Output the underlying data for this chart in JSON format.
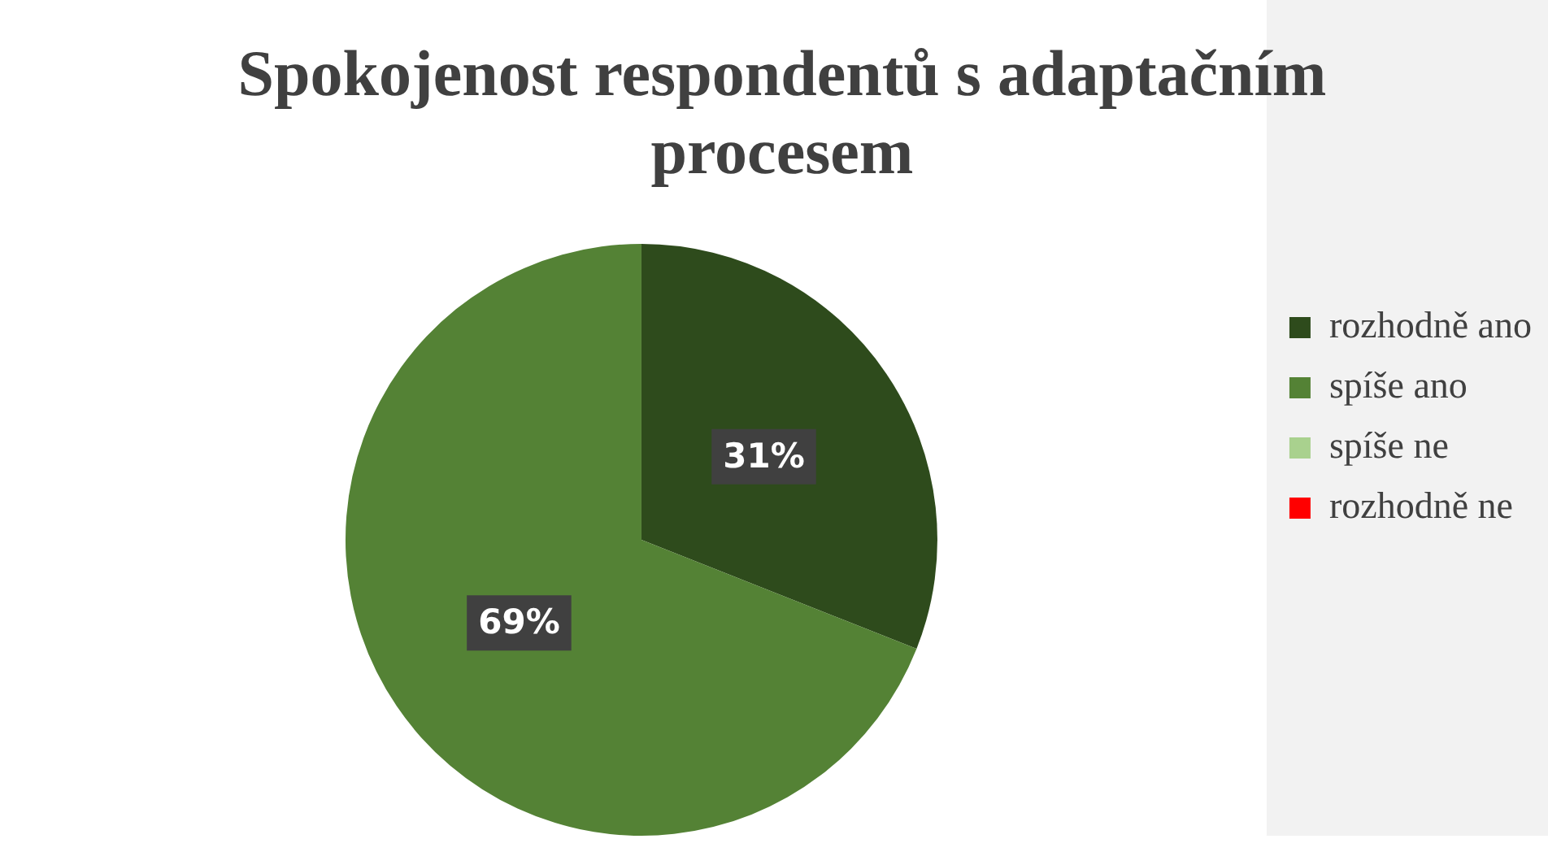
{
  "chart_data": {
    "type": "pie",
    "title": "Spokojenost respondentů s adaptačním procesem",
    "categories": [
      "rozhodně ano",
      "spíše ano",
      "spíše ne",
      "rozhodně ne"
    ],
    "values": [
      31,
      69,
      0,
      0
    ],
    "colors": [
      "#2e4b1c",
      "#548235",
      "#a9d18e",
      "#ff0000"
    ],
    "value_labels": [
      "31%",
      "69%",
      null,
      null
    ],
    "legend": "right"
  }
}
